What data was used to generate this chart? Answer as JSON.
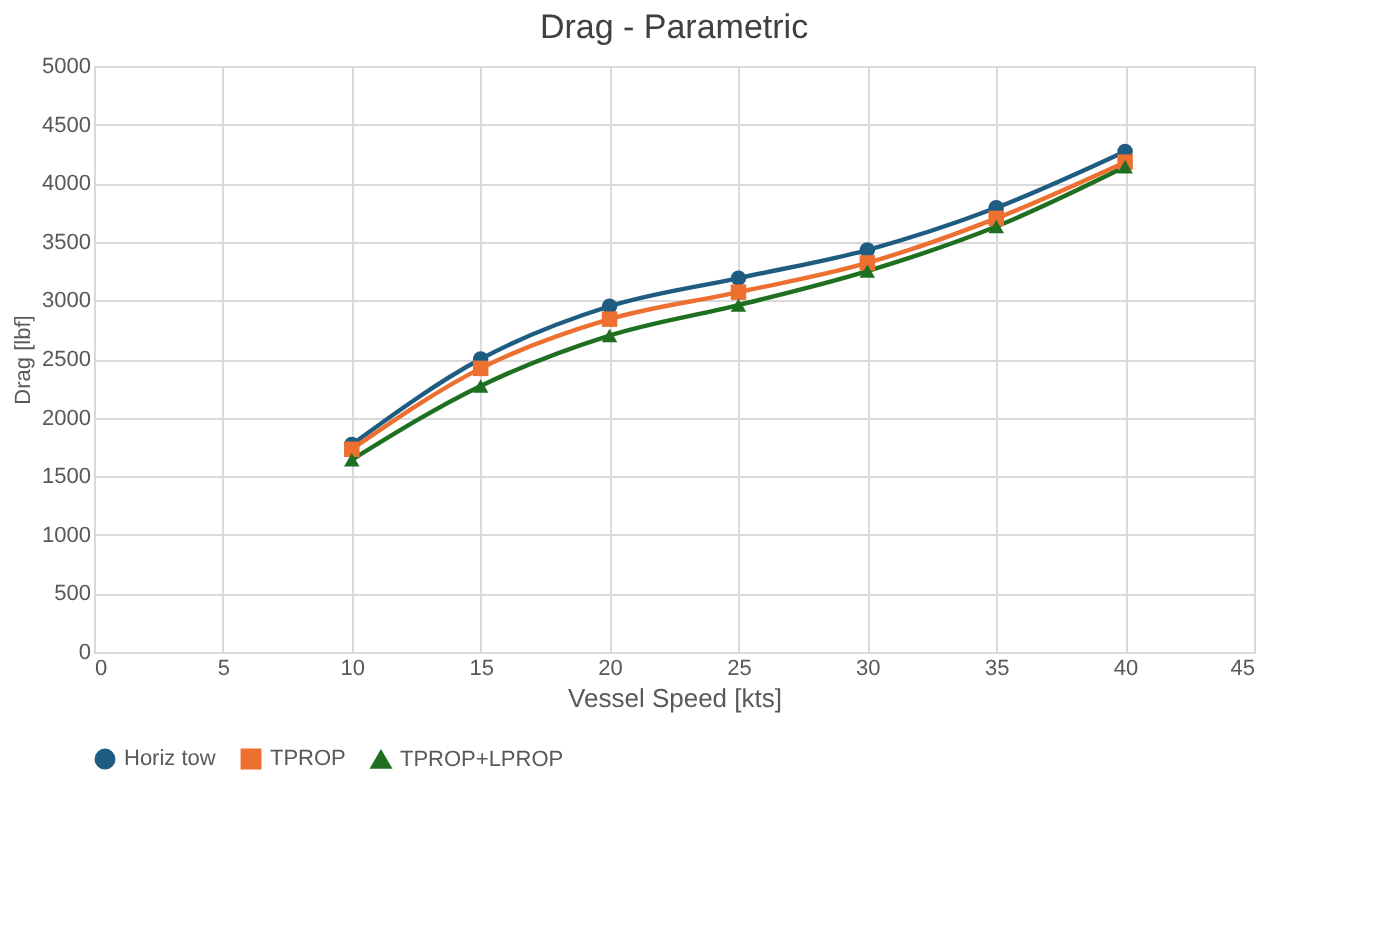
{
  "chart_data": {
    "type": "line",
    "title": "Drag - Parametric",
    "xlabel": "Vessel Speed [kts]",
    "ylabel": "Drag [lbf]",
    "x": [
      10,
      15,
      20,
      25,
      30,
      35,
      40
    ],
    "series": [
      {
        "name": "Horiz tow",
        "color": "#1f5c82",
        "marker": "circle",
        "values": [
          1770,
          2500,
          2950,
          3190,
          3430,
          3790,
          4270
        ]
      },
      {
        "name": "TPROP",
        "color": "#ed7031",
        "marker": "square",
        "values": [
          1730,
          2420,
          2840,
          3070,
          3320,
          3700,
          4180
        ]
      },
      {
        "name": "TPROP+LPROP",
        "color": "#1e7020",
        "marker": "triangle",
        "values": [
          1640,
          2270,
          2700,
          2960,
          3250,
          3630,
          4140
        ]
      }
    ],
    "xlim": [
      0,
      45
    ],
    "xticks": [
      0,
      5,
      10,
      15,
      20,
      25,
      30,
      35,
      40,
      45
    ],
    "ylim": [
      0,
      5000
    ],
    "yticks": [
      0,
      500,
      1000,
      1500,
      2000,
      2500,
      3000,
      3500,
      4000,
      4500,
      5000
    ],
    "grid": true,
    "legend": "bottom",
    "line_style": "solid"
  }
}
